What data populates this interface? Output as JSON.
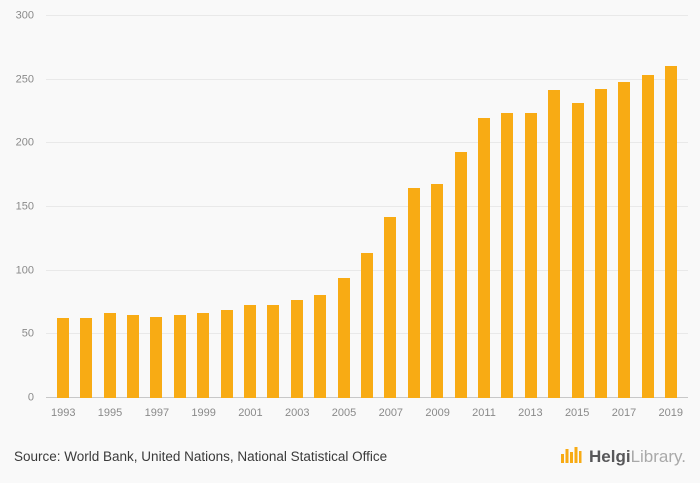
{
  "chart_data": {
    "type": "bar",
    "title": "",
    "xlabel": "",
    "ylabel": "",
    "x": [
      1993,
      1994,
      1995,
      1996,
      1997,
      1998,
      1999,
      2000,
      2001,
      2002,
      2003,
      2004,
      2005,
      2006,
      2007,
      2008,
      2009,
      2010,
      2011,
      2012,
      2013,
      2014,
      2015,
      2016,
      2017,
      2018,
      2019
    ],
    "values": [
      63,
      63,
      67,
      65,
      64,
      65,
      67,
      69,
      73,
      73,
      77,
      81,
      94,
      114,
      142,
      165,
      168,
      193,
      220,
      224,
      224,
      242,
      232,
      243,
      248,
      254,
      261
    ],
    "xtick_labels": [
      "1993",
      "1995",
      "1997",
      "1999",
      "2001",
      "2003",
      "2005",
      "2007",
      "2009",
      "2011",
      "2013",
      "2015",
      "2017",
      "2019"
    ],
    "yticks": [
      0,
      50,
      100,
      150,
      200,
      250,
      300
    ],
    "ylim": [
      0,
      300
    ],
    "grid": true,
    "legend": "none",
    "bar_color": "#F8AB14",
    "background_color": "#f9f9f9"
  },
  "footer": {
    "source": "Source: World Bank, United Nations, National Statistical Office",
    "logo": {
      "brand_bold": "Helgi",
      "brand_light": "Library."
    }
  }
}
